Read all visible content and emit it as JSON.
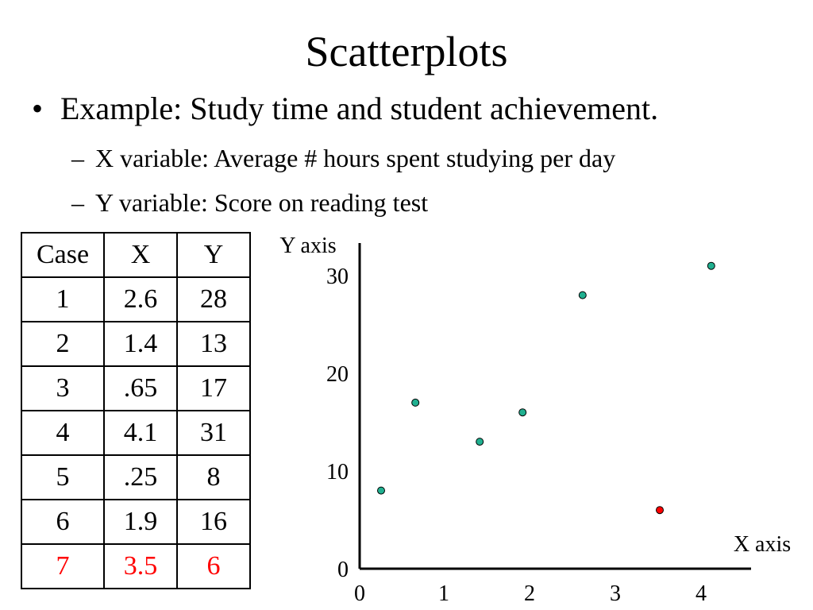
{
  "slide": {
    "title": "Scatterplots",
    "bullet": "Example:  Study time and student achievement.",
    "sub_items": [
      "X variable:  Average # hours spent studying per day",
      "Y variable:  Score on reading test"
    ]
  },
  "table": {
    "headers": [
      "Case",
      "X",
      "Y"
    ],
    "rows": [
      [
        "1",
        "2.6",
        "28"
      ],
      [
        "2",
        "1.4",
        "13"
      ],
      [
        "3",
        ".65",
        "17"
      ],
      [
        "4",
        "4.1",
        "31"
      ],
      [
        "5",
        ".25",
        "8"
      ],
      [
        "6",
        "1.9",
        "16"
      ],
      [
        "7",
        "3.5",
        "6"
      ]
    ],
    "highlight_row": 6,
    "highlight_color": "#ff0000"
  },
  "chart_data": {
    "type": "scatter",
    "xlabel": "X axis",
    "ylabel": "Y axis",
    "xlim": [
      0,
      4.5
    ],
    "ylim": [
      0,
      31.5
    ],
    "xticks": [
      0,
      1,
      2,
      3,
      4
    ],
    "yticks": [
      0,
      10,
      20,
      30
    ],
    "grid": false,
    "points": [
      {
        "case": "1",
        "x": 2.6,
        "y": 28,
        "color": "#20b090"
      },
      {
        "case": "2",
        "x": 1.4,
        "y": 13,
        "color": "#20b090"
      },
      {
        "case": "3",
        "x": 0.65,
        "y": 17,
        "color": "#20b090"
      },
      {
        "case": "4",
        "x": 4.1,
        "y": 31,
        "color": "#20b090"
      },
      {
        "case": "5",
        "x": 0.25,
        "y": 8,
        "color": "#20b090"
      },
      {
        "case": "6",
        "x": 1.9,
        "y": 16,
        "color": "#20b090"
      },
      {
        "case": "7",
        "x": 3.5,
        "y": 6,
        "color": "#ff0000"
      }
    ]
  }
}
